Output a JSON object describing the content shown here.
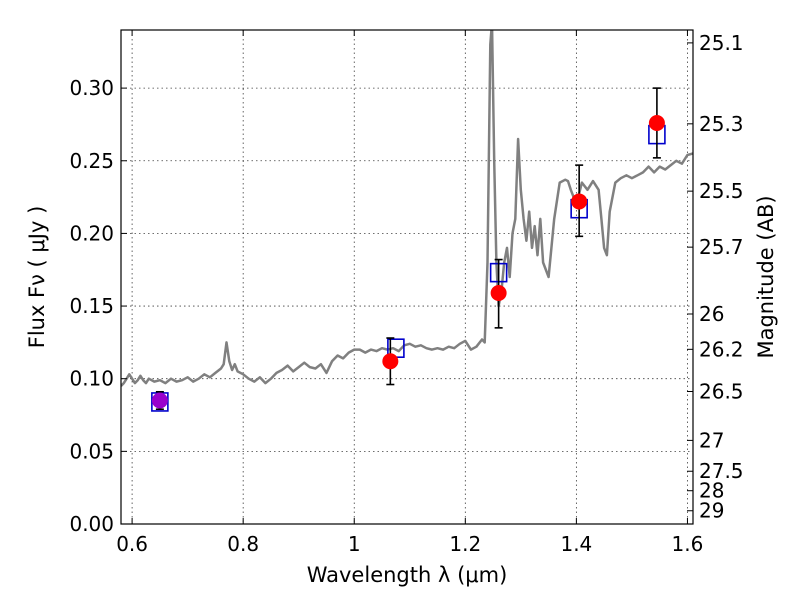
{
  "chart_data": {
    "type": "scatter",
    "xlabel": "Wavelength  λ (μm)",
    "ylabel": "Flux  Fν  ( μJy )",
    "y2label": "Magnitude (AB)",
    "xlim": [
      0.58,
      1.61
    ],
    "ylim": [
      0.0,
      0.34
    ],
    "grid": true,
    "x_ticks": [
      "0.6",
      "0.8",
      "1",
      "1.2",
      "1.4",
      "1.6"
    ],
    "x_tick_values": [
      0.6,
      0.8,
      1.0,
      1.2,
      1.4,
      1.6
    ],
    "y_ticks": [
      "0.00",
      "0.05",
      "0.10",
      "0.15",
      "0.20",
      "0.25",
      "0.30"
    ],
    "y_tick_values": [
      0.0,
      0.05,
      0.1,
      0.15,
      0.2,
      0.25,
      0.3
    ],
    "y2_ticks": [
      "25.1",
      "25.3",
      "25.5",
      "25.7",
      "26",
      "26.2",
      "26.5",
      "27",
      "27.5",
      "28",
      "29"
    ],
    "y2_tick_values": [
      25.1,
      25.3,
      25.5,
      25.7,
      26.0,
      26.2,
      26.5,
      27.0,
      27.5,
      28.0,
      29.0
    ],
    "colors": {
      "model": "#808080",
      "observed": "#ff0000",
      "synthetic": "#0000cc",
      "first_point": "#9900cc",
      "errorbar": "#000000"
    },
    "model_spectrum": {
      "x": [
        0.58,
        0.585,
        0.59,
        0.595,
        0.6,
        0.605,
        0.61,
        0.615,
        0.62,
        0.625,
        0.63,
        0.64,
        0.65,
        0.66,
        0.67,
        0.68,
        0.69,
        0.7,
        0.71,
        0.72,
        0.73,
        0.74,
        0.75,
        0.76,
        0.765,
        0.77,
        0.775,
        0.78,
        0.785,
        0.79,
        0.8,
        0.81,
        0.82,
        0.83,
        0.84,
        0.85,
        0.86,
        0.87,
        0.88,
        0.89,
        0.9,
        0.91,
        0.92,
        0.93,
        0.94,
        0.95,
        0.96,
        0.97,
        0.98,
        0.99,
        1.0,
        1.01,
        1.02,
        1.03,
        1.04,
        1.05,
        1.06,
        1.07,
        1.08,
        1.09,
        1.1,
        1.11,
        1.12,
        1.13,
        1.14,
        1.15,
        1.16,
        1.17,
        1.18,
        1.19,
        1.2,
        1.21,
        1.22,
        1.23,
        1.235,
        1.24,
        1.245,
        1.248,
        1.252,
        1.256,
        1.26,
        1.265,
        1.27,
        1.275,
        1.28,
        1.285,
        1.29,
        1.295,
        1.3,
        1.305,
        1.31,
        1.315,
        1.32,
        1.325,
        1.33,
        1.335,
        1.34,
        1.35,
        1.36,
        1.37,
        1.38,
        1.385,
        1.39,
        1.4,
        1.41,
        1.42,
        1.43,
        1.44,
        1.445,
        1.45,
        1.455,
        1.46,
        1.47,
        1.48,
        1.49,
        1.5,
        1.51,
        1.52,
        1.53,
        1.54,
        1.55,
        1.56,
        1.57,
        1.58,
        1.59,
        1.6,
        1.61
      ],
      "y": [
        0.095,
        0.097,
        0.1,
        0.103,
        0.1,
        0.097,
        0.099,
        0.102,
        0.099,
        0.097,
        0.1,
        0.098,
        0.099,
        0.097,
        0.1,
        0.098,
        0.099,
        0.101,
        0.098,
        0.1,
        0.103,
        0.101,
        0.104,
        0.107,
        0.11,
        0.125,
        0.112,
        0.106,
        0.11,
        0.105,
        0.103,
        0.1,
        0.098,
        0.101,
        0.097,
        0.1,
        0.104,
        0.106,
        0.109,
        0.105,
        0.108,
        0.111,
        0.108,
        0.107,
        0.11,
        0.104,
        0.112,
        0.116,
        0.114,
        0.118,
        0.12,
        0.12,
        0.118,
        0.12,
        0.119,
        0.121,
        0.12,
        0.121,
        0.119,
        0.123,
        0.124,
        0.122,
        0.123,
        0.121,
        0.12,
        0.121,
        0.12,
        0.122,
        0.121,
        0.124,
        0.126,
        0.12,
        0.122,
        0.127,
        0.125,
        0.18,
        0.33,
        0.345,
        0.25,
        0.18,
        0.15,
        0.16,
        0.18,
        0.19,
        0.17,
        0.2,
        0.21,
        0.265,
        0.23,
        0.21,
        0.195,
        0.215,
        0.19,
        0.205,
        0.185,
        0.21,
        0.18,
        0.17,
        0.21,
        0.235,
        0.237,
        0.236,
        0.23,
        0.22,
        0.235,
        0.23,
        0.236,
        0.23,
        0.21,
        0.19,
        0.185,
        0.215,
        0.235,
        0.238,
        0.24,
        0.238,
        0.24,
        0.242,
        0.246,
        0.242,
        0.246,
        0.244,
        0.247,
        0.25,
        0.248,
        0.254,
        0.255
      ]
    },
    "observed": {
      "x": [
        0.65,
        1.065,
        1.26,
        1.405,
        1.545
      ],
      "y": [
        0.085,
        0.112,
        0.159,
        0.222,
        0.276
      ],
      "err_low": [
        0.079,
        0.096,
        0.135,
        0.198,
        0.252
      ],
      "err_high": [
        0.091,
        0.128,
        0.182,
        0.247,
        0.3
      ]
    },
    "synthetic": {
      "x": [
        0.65,
        1.075,
        1.26,
        1.405,
        1.545
      ],
      "y": [
        0.084,
        0.121,
        0.173,
        0.217,
        0.268
      ]
    }
  }
}
